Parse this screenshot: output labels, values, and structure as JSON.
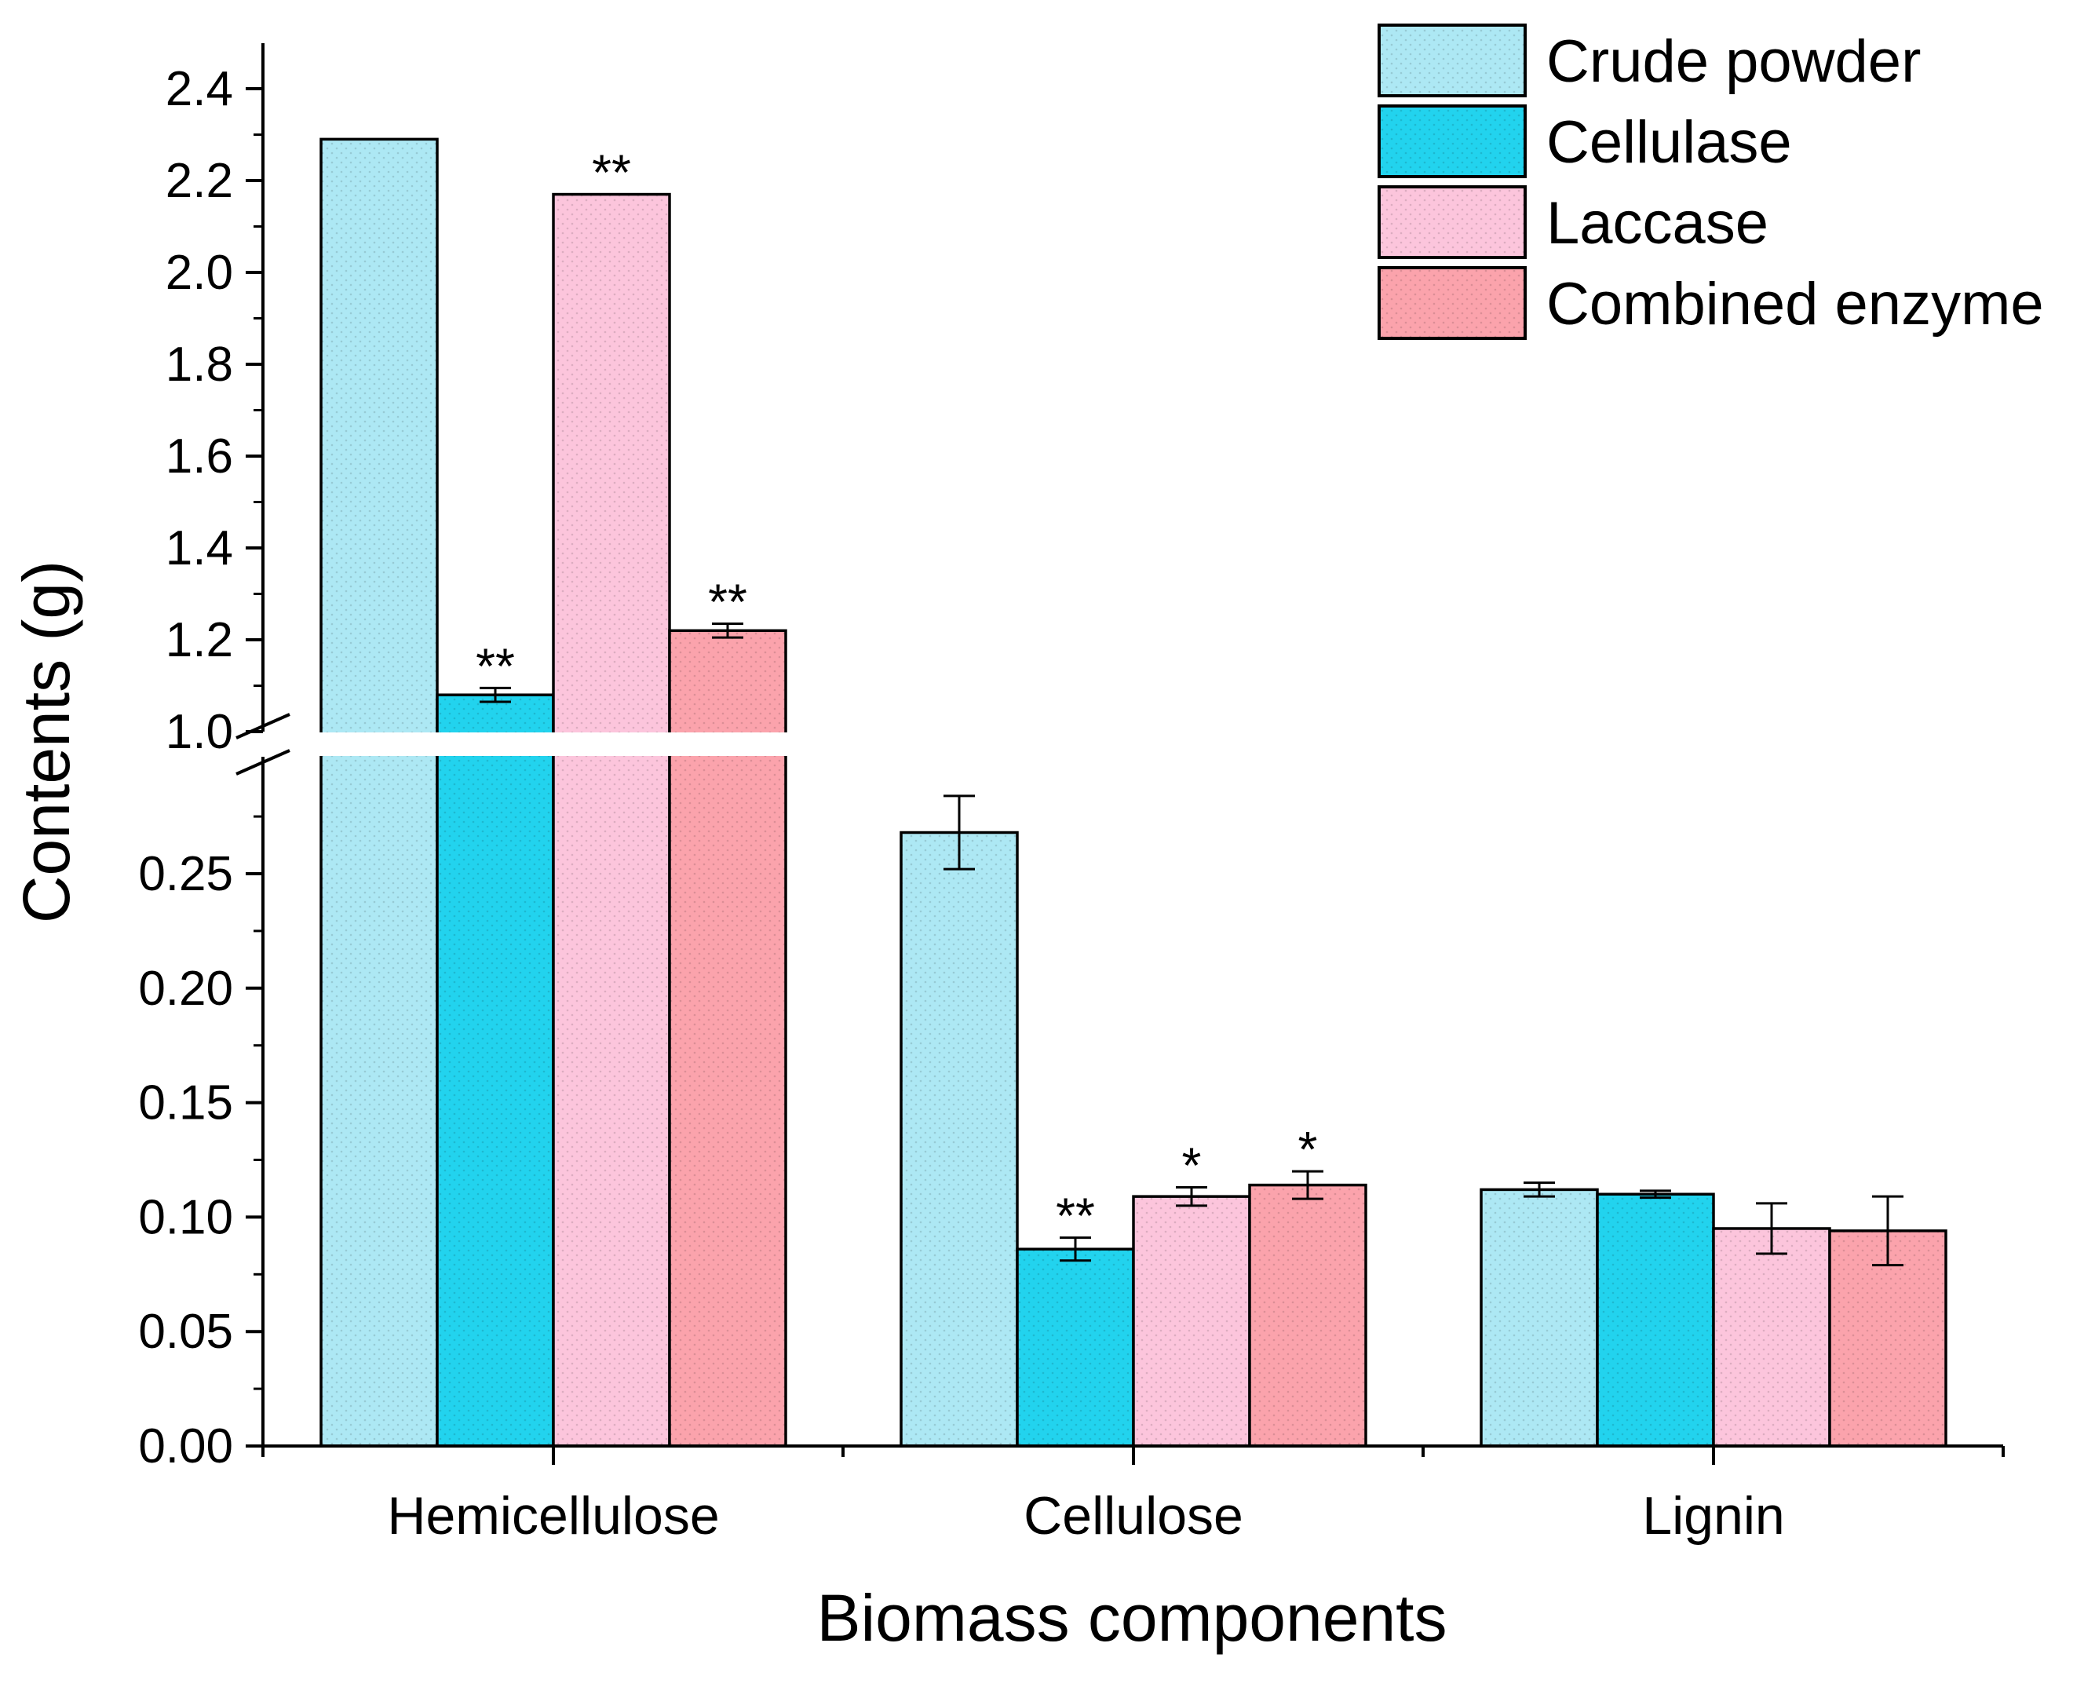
{
  "chart_data": {
    "type": "bar",
    "title": "",
    "xlabel": "Biomass components",
    "ylabel": "Contents (g)",
    "categories": [
      "Hemicellulose",
      "Cellulose",
      "Lignin"
    ],
    "y_axis_break": {
      "lower_segment": [
        0,
        0.29
      ],
      "upper_segment": [
        1.0,
        2.45
      ],
      "lower_ticks": [
        "0.00",
        "0.05",
        "0.10",
        "0.15",
        "0.20",
        "0.25"
      ],
      "upper_ticks": [
        "1.0",
        "1.2",
        "1.4",
        "1.6",
        "1.8",
        "2.0",
        "2.2",
        "2.4"
      ]
    },
    "legend_position": "top-right",
    "series": [
      {
        "name": "Crude powder",
        "color": "#ade8f4",
        "values": [
          2.29,
          0.268,
          0.112
        ],
        "errors": [
          0,
          0.016,
          0.003
        ],
        "significance": [
          "",
          "",
          ""
        ]
      },
      {
        "name": "Cellulase",
        "color": "#22d3ee",
        "values": [
          1.08,
          0.086,
          0.11
        ],
        "errors": [
          0.015,
          0.005,
          0.0015
        ],
        "significance": [
          "**",
          "**",
          ""
        ]
      },
      {
        "name": "Laccase",
        "color": "#fcc5dc",
        "values": [
          2.17,
          0.109,
          0.095
        ],
        "errors": [
          0,
          0.004,
          0.011
        ],
        "significance": [
          "**",
          "*",
          ""
        ]
      },
      {
        "name": "Combined enzyme",
        "color": "#fba3ac",
        "values": [
          1.22,
          0.114,
          0.094
        ],
        "errors": [
          0.015,
          0.006,
          0.015
        ],
        "significance": [
          "**",
          "*",
          ""
        ]
      }
    ]
  }
}
